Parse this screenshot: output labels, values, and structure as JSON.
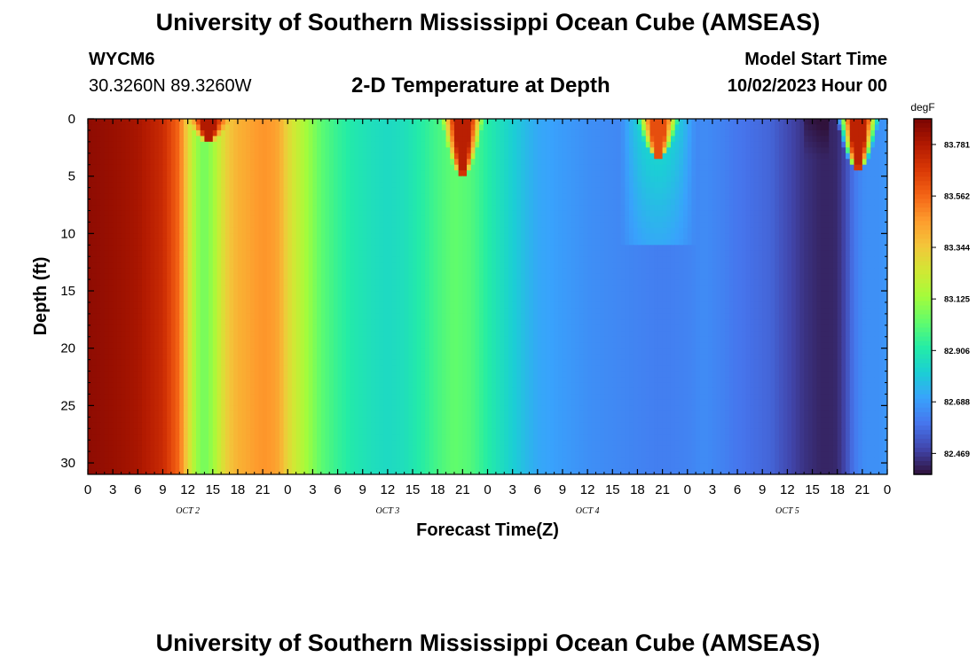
{
  "header": {
    "title": "University of Southern Mississippi Ocean Cube (AMSEAS)",
    "station_id": "WYCM6",
    "station_coords": "30.3260N  89.3260W",
    "plot_title": "2-D Temperature at Depth",
    "model_start_label": "Model Start Time",
    "model_start_value": "10/02/2023 Hour 00"
  },
  "footer": {
    "title": "University of Southern Mississippi Ocean Cube (AMSEAS)"
  },
  "chart_data": {
    "type": "heatmap",
    "title": "2-D Temperature at Depth",
    "xlabel": "Forecast Time(Z)",
    "ylabel": "Depth (ft)",
    "x_tick_labels": [
      "0",
      "3",
      "6",
      "9",
      "12",
      "15",
      "18",
      "21",
      "0",
      "3",
      "6",
      "9",
      "12",
      "15",
      "18",
      "21",
      "0",
      "3",
      "6",
      "9",
      "12",
      "15",
      "18",
      "21",
      "0",
      "3",
      "6",
      "9",
      "12",
      "15",
      "18",
      "21",
      "0"
    ],
    "x_date_labels": [
      "OCT 2",
      "OCT 3",
      "OCT 4",
      "OCT 5"
    ],
    "x_hours_range": [
      0,
      96
    ],
    "y_ticks": [
      0,
      5,
      10,
      15,
      20,
      25,
      30
    ],
    "ylim": [
      0,
      31
    ],
    "y_inverted": true,
    "colorbar": {
      "unit": "degF",
      "ticks": [
        83.781,
        83.562,
        83.344,
        83.125,
        82.906,
        82.688,
        82.469
      ],
      "range": [
        82.38,
        83.89
      ],
      "colormap": [
        "#30123b",
        "#4145ab",
        "#4675ed",
        "#39a2fc",
        "#1bcfd4",
        "#24eca6",
        "#61fc6c",
        "#a4fc3b",
        "#d1e834",
        "#f3c63a",
        "#fe9b2d",
        "#f36315",
        "#d93806",
        "#b11901",
        "#7a0402"
      ]
    },
    "base_profile_hours": [
      0,
      3,
      6,
      9,
      11,
      12,
      13,
      14,
      15,
      16,
      17,
      18,
      19,
      20,
      21,
      22,
      23,
      24,
      26,
      28,
      30,
      32,
      34,
      36,
      38,
      40,
      42,
      44,
      46,
      48,
      50,
      52,
      54,
      56,
      58,
      60,
      62,
      64,
      66,
      68,
      70,
      72,
      74,
      76,
      78,
      80,
      82,
      84,
      86,
      88,
      89,
      90,
      91,
      92,
      93,
      94,
      95,
      96
    ],
    "base_profile_values": [
      83.85,
      83.83,
      83.8,
      83.72,
      83.55,
      83.3,
      83.12,
      83.05,
      83.12,
      83.25,
      83.35,
      83.4,
      83.42,
      83.45,
      83.47,
      83.46,
      83.42,
      83.3,
      83.15,
      83.02,
      82.95,
      82.9,
      82.87,
      82.85,
      82.87,
      82.92,
      82.98,
      83.03,
      83.0,
      82.92,
      82.85,
      82.78,
      82.72,
      82.7,
      82.68,
      82.66,
      82.65,
      82.64,
      82.63,
      82.62,
      82.62,
      82.63,
      82.65,
      82.63,
      82.6,
      82.58,
      82.56,
      82.5,
      82.45,
      82.42,
      82.42,
      82.43,
      82.5,
      82.6,
      82.65,
      82.66,
      82.66,
      82.68
    ],
    "surface_warm_events": [
      {
        "center_hour": 14.5,
        "depth_max_ft": 2.0,
        "peak_value": 83.78
      },
      {
        "center_hour": 45.0,
        "depth_max_ft": 5.0,
        "peak_value": 83.76
      },
      {
        "center_hour": 68.5,
        "depth_max_ft": 3.5,
        "peak_value": 83.62
      },
      {
        "center_hour": 92.5,
        "depth_max_ft": 4.5,
        "peak_value": 83.75
      }
    ],
    "mixed_layer_anomalies": [
      {
        "hour_start": 64,
        "hour_end": 73,
        "depth_max_ft": 11,
        "anomaly": 0.25
      }
    ],
    "cold_anomalies": [
      {
        "hour_start": 86,
        "hour_end": 89,
        "depth_max_ft": 3.5,
        "anomaly": -0.05
      }
    ]
  }
}
